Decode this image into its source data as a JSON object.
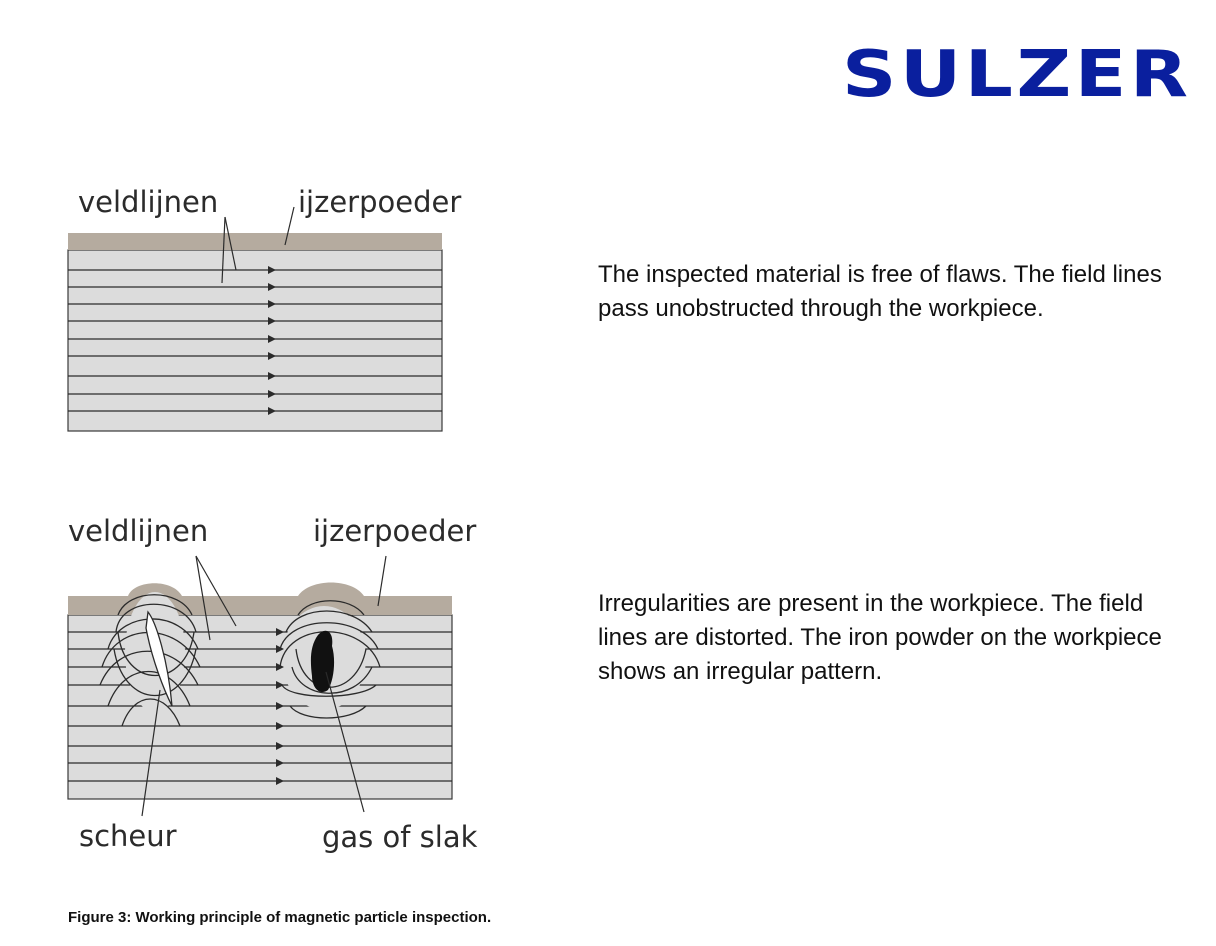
{
  "header": {
    "logo_text": "SULZER",
    "logo_color": "#0a1f9e"
  },
  "diagram_top": {
    "labels": {
      "field_lines": "veldlijnen",
      "iron_powder": "ijzerpoeder"
    },
    "description": "The inspected material is free of flaws. The field lines pass unobstructed through the workpiece."
  },
  "diagram_bottom": {
    "labels": {
      "field_lines": "veldlijnen",
      "iron_powder": "ijzerpoeder",
      "crack": "scheur",
      "gas_or_slag": "gas of slak"
    },
    "description": "Irregularities are present in the workpiece. The field lines are distorted. The iron powder on the workpiece shows an irregular pattern."
  },
  "caption": "Figure 3: Working principle of magnetic particle inspection.",
  "colors": {
    "powder_layer": "#b5ab9f",
    "workpiece": "#dcdcdc",
    "lines": "#2b2b2b",
    "text": "#111111"
  }
}
